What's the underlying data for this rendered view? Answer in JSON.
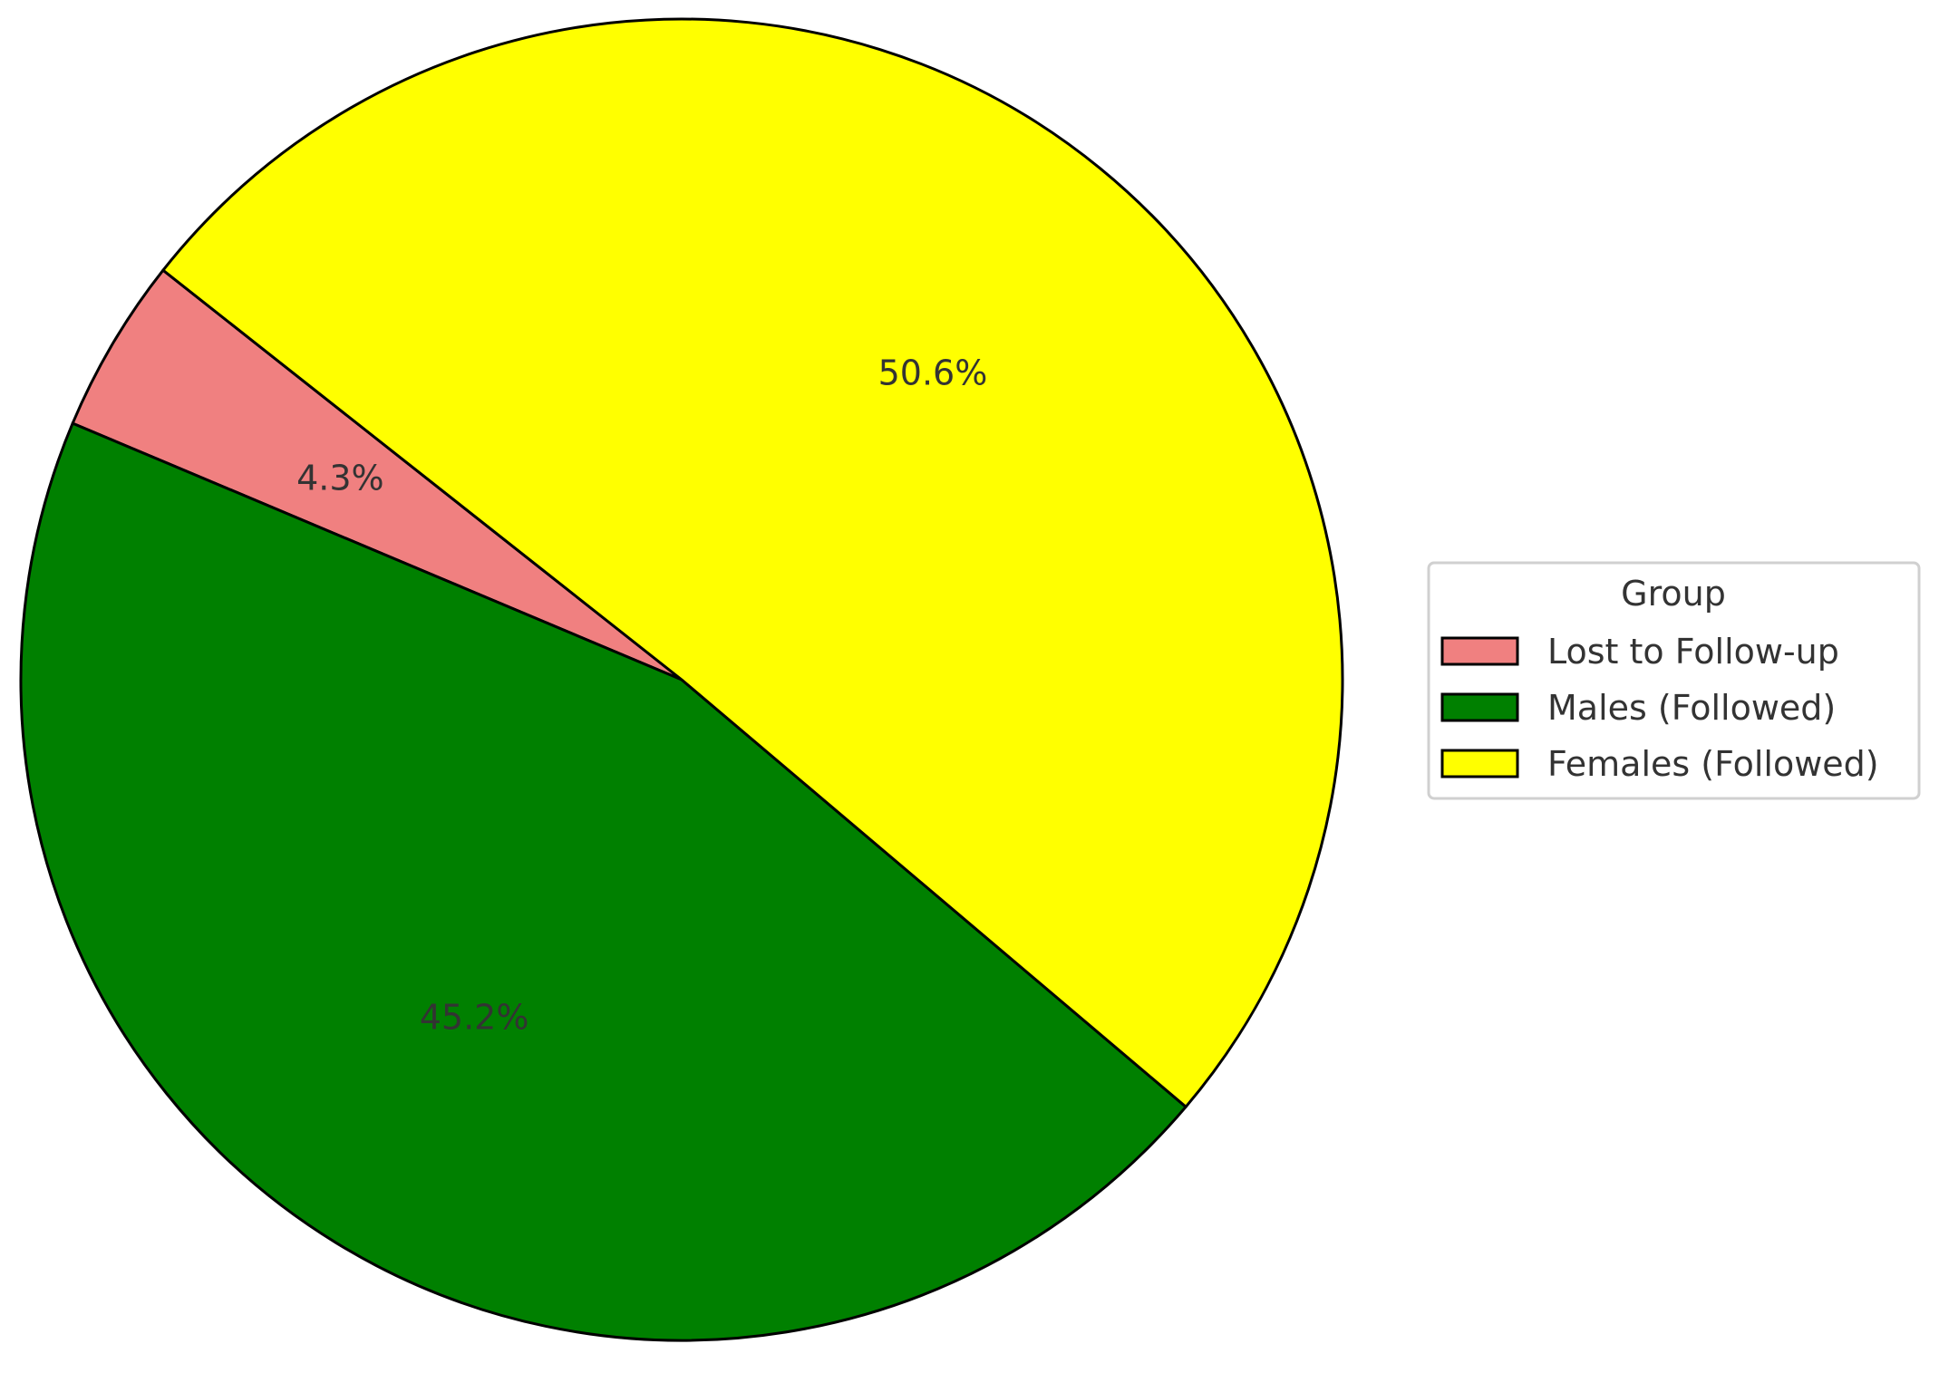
{
  "chart_data": {
    "type": "pie",
    "slices": [
      {
        "label": "Lost to Follow-up",
        "value": 4.3,
        "display": "4.3%",
        "color": "#f08080"
      },
      {
        "label": "Males (Followed)",
        "value": 45.2,
        "display": "45.2%",
        "color": "#008000"
      },
      {
        "label": "Females (Followed)",
        "value": 50.6,
        "display": "50.6%",
        "color": "#ffff00"
      }
    ],
    "start_angle_deg": 141.7,
    "direction": "counterclockwise",
    "edge_color": "#000000",
    "legend": {
      "title": "Group",
      "placement": "right"
    }
  }
}
